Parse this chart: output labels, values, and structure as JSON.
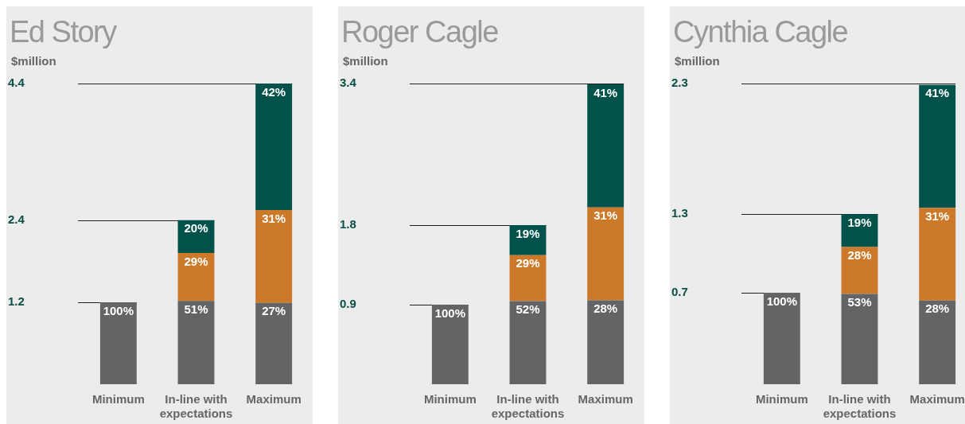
{
  "chart_data": [
    {
      "type": "bar",
      "title": "Ed Story",
      "ylabel": "$million",
      "stacked": true,
      "categories": [
        "Minimum",
        "In-line with expectations",
        "Maximum"
      ],
      "ylim": [
        0,
        4.4
      ],
      "yticks": [
        1.2,
        2.4,
        4.4
      ],
      "ref_lines": [
        {
          "axis": "y",
          "value": 1.2
        },
        {
          "axis": "y",
          "value": 2.4
        },
        {
          "axis": "y",
          "value": 4.4
        }
      ],
      "series": [
        {
          "color": "#636466",
          "values": [
            1.2,
            1.22,
            1.19
          ]
        },
        {
          "color": "#cc7a2a",
          "values": [
            null,
            0.7,
            1.36
          ]
        },
        {
          "color": "#00524a",
          "values": [
            null,
            0.48,
            1.85
          ]
        }
      ],
      "annotations": [
        {
          "text": "100%",
          "x": "Minimum",
          "y": 1.2
        },
        {
          "text": "51%",
          "x": "In-line with expectations",
          "y": 1.22
        },
        {
          "text": "29%",
          "x": "In-line with expectations",
          "y": 1.92
        },
        {
          "text": "20%",
          "x": "In-line with expectations",
          "y": 2.4
        },
        {
          "text": "27%",
          "x": "Maximum",
          "y": 1.19
        },
        {
          "text": "31%",
          "x": "Maximum",
          "y": 2.55
        },
        {
          "text": "42%",
          "x": "Maximum",
          "y": 4.4
        }
      ]
    },
    {
      "type": "bar",
      "title": "Roger Cagle",
      "ylabel": "$million",
      "stacked": true,
      "categories": [
        "Minimum",
        "In-line with expectations",
        "Maximum"
      ],
      "ylim": [
        0,
        3.4
      ],
      "yticks": [
        0.9,
        1.8,
        3.4
      ],
      "ref_lines": [
        {
          "axis": "y",
          "value": 0.9
        },
        {
          "axis": "y",
          "value": 1.8
        },
        {
          "axis": "y",
          "value": 3.4
        }
      ],
      "series": [
        {
          "color": "#636466",
          "values": [
            0.9,
            0.94,
            0.95
          ]
        },
        {
          "color": "#cc7a2a",
          "values": [
            null,
            0.52,
            1.05
          ]
        },
        {
          "color": "#00524a",
          "values": [
            null,
            0.34,
            1.39
          ]
        }
      ],
      "annotations": [
        {
          "text": "100%",
          "x": "Minimum",
          "y": 0.9
        },
        {
          "text": "52%",
          "x": "In-line with expectations",
          "y": 0.94
        },
        {
          "text": "29%",
          "x": "In-line with expectations",
          "y": 1.46
        },
        {
          "text": "19%",
          "x": "In-line with expectations",
          "y": 1.8
        },
        {
          "text": "28%",
          "x": "Maximum",
          "y": 0.95
        },
        {
          "text": "31%",
          "x": "Maximum",
          "y": 2.0
        },
        {
          "text": "41%",
          "x": "Maximum",
          "y": 3.39
        }
      ]
    },
    {
      "type": "bar",
      "title": "Cynthia Cagle",
      "ylabel": "$million",
      "stacked": true,
      "categories": [
        "Minimum",
        "In-line with expectations",
        "Maximum"
      ],
      "ylim": [
        0,
        2.3
      ],
      "yticks": [
        0.7,
        1.3,
        2.3
      ],
      "ref_lines": [
        {
          "axis": "y",
          "value": 0.7
        },
        {
          "axis": "y",
          "value": 1.3
        },
        {
          "axis": "y",
          "value": 2.3
        }
      ],
      "series": [
        {
          "color": "#636466",
          "values": [
            0.7,
            0.69,
            0.64
          ]
        },
        {
          "color": "#cc7a2a",
          "values": [
            null,
            0.36,
            0.71
          ]
        },
        {
          "color": "#00524a",
          "values": [
            null,
            0.25,
            0.94
          ]
        }
      ],
      "annotations": [
        {
          "text": "100%",
          "x": "Minimum",
          "y": 0.7
        },
        {
          "text": "53%",
          "x": "In-line with expectations",
          "y": 0.69
        },
        {
          "text": "28%",
          "x": "In-line with expectations",
          "y": 1.05
        },
        {
          "text": "19%",
          "x": "In-line with expectations",
          "y": 1.3
        },
        {
          "text": "28%",
          "x": "Maximum",
          "y": 0.64
        },
        {
          "text": "31%",
          "x": "Maximum",
          "y": 1.35
        },
        {
          "text": "41%",
          "x": "Maximum",
          "y": 2.29
        }
      ]
    }
  ]
}
